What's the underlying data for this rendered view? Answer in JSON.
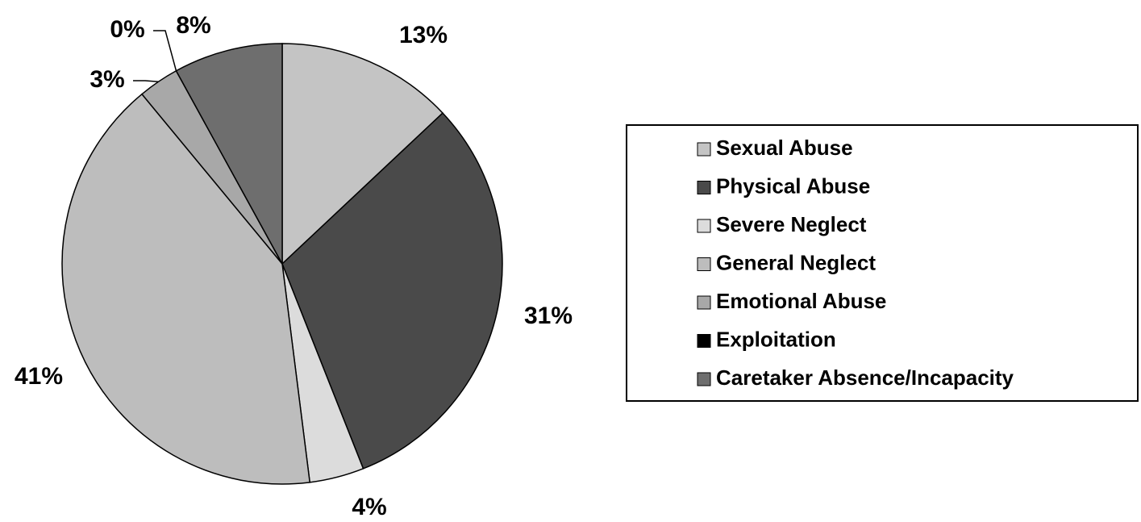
{
  "chart_data": {
    "type": "pie",
    "categories": [
      "Sexual Abuse",
      "Physical Abuse",
      "Severe Neglect",
      "General Neglect",
      "Emotional Abuse",
      "Exploitation",
      "Caretaker Absence/Incapacity"
    ],
    "values": [
      13,
      31,
      4,
      41,
      3,
      0,
      8
    ],
    "value_labels": [
      "13%",
      "31%",
      "4%",
      "41%",
      "3%",
      "0%",
      "8%"
    ],
    "colors": [
      "#c4c4c4",
      "#4a4a4a",
      "#dcdcdc",
      "#bdbdbd",
      "#a8a8a8",
      "#000000",
      "#6e6e6e"
    ],
    "legend": "right"
  }
}
